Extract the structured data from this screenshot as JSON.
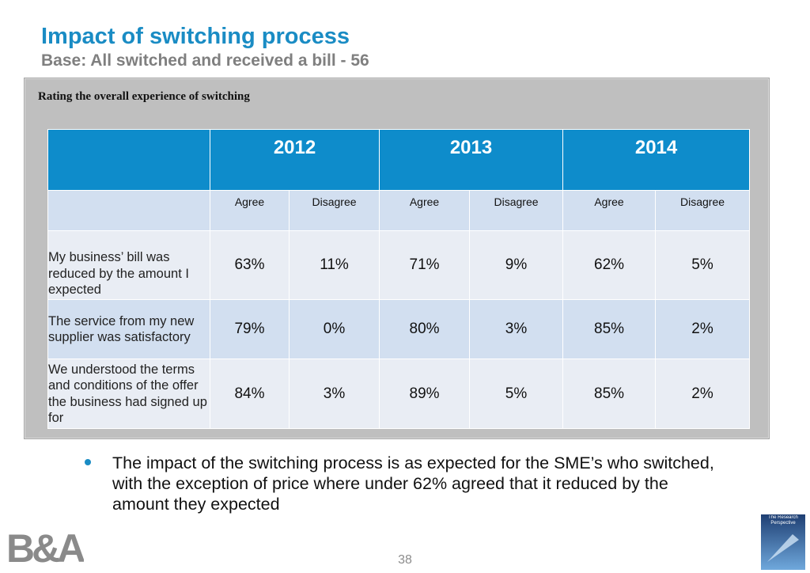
{
  "header": {
    "title": "Impact of switching process",
    "subtitle": "Base: All switched and received a bill - 56"
  },
  "panel": {
    "title": "Rating the overall experience of switching"
  },
  "table": {
    "years": [
      "2012",
      "2013",
      "2014"
    ],
    "subheaders": [
      "Agree",
      "Disagree",
      "Agree",
      "Disagree",
      "Agree",
      "Disagree"
    ],
    "rows": [
      {
        "label": "My business’ bill was reduced by the amount I expected",
        "cells": [
          "63%",
          "11%",
          "71%",
          "9%",
          "62%",
          "5%"
        ]
      },
      {
        "label": "The service from my new supplier was satisfactory",
        "cells": [
          "79%",
          "0%",
          "80%",
          "3%",
          "85%",
          "2%"
        ]
      },
      {
        "label": "We understood the terms and conditions of the offer the business had signed up for",
        "cells": [
          "84%",
          "3%",
          "89%",
          "5%",
          "85%",
          "2%"
        ]
      }
    ]
  },
  "bullets": [
    "The impact of the switching process is as expected for the SME’s who switched, with the exception of price where under 62% agreed that it reduced by the amount they expected"
  ],
  "footer": {
    "page": "38",
    "logo": "B&A",
    "logo2": "The Research Perspective"
  }
}
